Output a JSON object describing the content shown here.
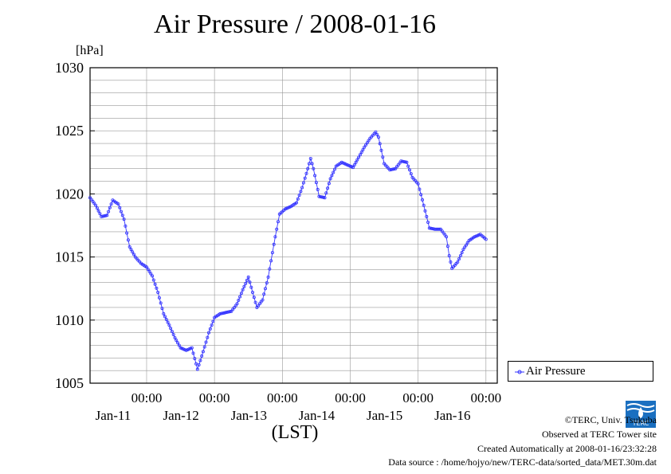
{
  "page": {
    "title": "Air Pressure / 2008-01-16",
    "unit_label": "[hPa]",
    "x_unit": "(LST)"
  },
  "legend": {
    "label": "Air Pressure"
  },
  "footer": {
    "copyright": "©TERC, Univ. Tsukuba",
    "observed": "Observed at TERC Tower site",
    "created": "Created Automatically at 2008-01-16/23:32:28",
    "source": "Data source : /home/hojyo/new/TERC-data/sorted_data/MET.30m.dat"
  },
  "logo": {
    "text": "TERC"
  },
  "colors": {
    "series": "#3333ff",
    "grid": "#999999",
    "axis": "#000000"
  },
  "chart_data": {
    "type": "line",
    "title": "Air Pressure / 2008-01-16",
    "ylabel": "[hPa]",
    "xlabel": "(LST)",
    "ylim": [
      1005,
      1030
    ],
    "yticks": [
      1005,
      1010,
      1015,
      1020,
      1025,
      1030
    ],
    "xlim": [
      -20,
      124
    ],
    "x_unit": "hours since Jan-11 00:00",
    "xticks": [
      {
        "x": 0,
        "time": "00:00",
        "date": "Jan-11"
      },
      {
        "x": 24,
        "time": "00:00",
        "date": "Jan-12"
      },
      {
        "x": 48,
        "time": "00:00",
        "date": "Jan-13"
      },
      {
        "x": 72,
        "time": "00:00",
        "date": "Jan-14"
      },
      {
        "x": 96,
        "time": "00:00",
        "date": "Jan-15"
      },
      {
        "x": 120,
        "time": "00:00",
        "date": "Jan-16"
      }
    ],
    "grid": true,
    "legend_position": "right",
    "series": [
      {
        "name": "Air Pressure",
        "marker": "circle",
        "points": [
          [
            -20,
            1019.7
          ],
          [
            -18,
            1019.1
          ],
          [
            -16,
            1018.2
          ],
          [
            -14,
            1018.3
          ],
          [
            -12,
            1019.5
          ],
          [
            -10,
            1019.2
          ],
          [
            -8,
            1018.0
          ],
          [
            -6,
            1015.8
          ],
          [
            -4,
            1015.0
          ],
          [
            -2,
            1014.5
          ],
          [
            0,
            1014.2
          ],
          [
            2,
            1013.5
          ],
          [
            4,
            1012.2
          ],
          [
            6,
            1010.5
          ],
          [
            8,
            1009.6
          ],
          [
            10,
            1008.6
          ],
          [
            12,
            1007.8
          ],
          [
            14,
            1007.6
          ],
          [
            16,
            1007.8
          ],
          [
            18,
            1006.1
          ],
          [
            20,
            1007.5
          ],
          [
            22,
            1009.0
          ],
          [
            24,
            1010.2
          ],
          [
            26,
            1010.5
          ],
          [
            28,
            1010.6
          ],
          [
            30,
            1010.7
          ],
          [
            32,
            1011.3
          ],
          [
            34,
            1012.4
          ],
          [
            36,
            1013.4
          ],
          [
            38,
            1011.8
          ],
          [
            39,
            1011.0
          ],
          [
            41,
            1011.6
          ],
          [
            43,
            1013.4
          ],
          [
            45,
            1016.0
          ],
          [
            47,
            1018.4
          ],
          [
            49,
            1018.8
          ],
          [
            51,
            1019.0
          ],
          [
            53,
            1019.3
          ],
          [
            55,
            1020.5
          ],
          [
            57,
            1022.0
          ],
          [
            58,
            1022.8
          ],
          [
            59,
            1022.0
          ],
          [
            61,
            1019.8
          ],
          [
            63,
            1019.7
          ],
          [
            65,
            1021.2
          ],
          [
            67,
            1022.2
          ],
          [
            69,
            1022.5
          ],
          [
            71,
            1022.3
          ],
          [
            73,
            1022.1
          ],
          [
            75,
            1022.9
          ],
          [
            77,
            1023.7
          ],
          [
            79,
            1024.4
          ],
          [
            81,
            1024.9
          ],
          [
            82,
            1024.5
          ],
          [
            84,
            1022.4
          ],
          [
            86,
            1021.9
          ],
          [
            88,
            1022.0
          ],
          [
            90,
            1022.6
          ],
          [
            92,
            1022.5
          ],
          [
            94,
            1021.3
          ],
          [
            96,
            1020.8
          ],
          [
            98,
            1019.1
          ],
          [
            100,
            1017.3
          ],
          [
            102,
            1017.2
          ],
          [
            104,
            1017.2
          ],
          [
            106,
            1016.6
          ],
          [
            107,
            1015.1
          ],
          [
            108,
            1014.1
          ],
          [
            110,
            1014.6
          ],
          [
            112,
            1015.6
          ],
          [
            114,
            1016.3
          ],
          [
            116,
            1016.6
          ],
          [
            118,
            1016.8
          ],
          [
            120,
            1016.4
          ]
        ]
      }
    ]
  }
}
